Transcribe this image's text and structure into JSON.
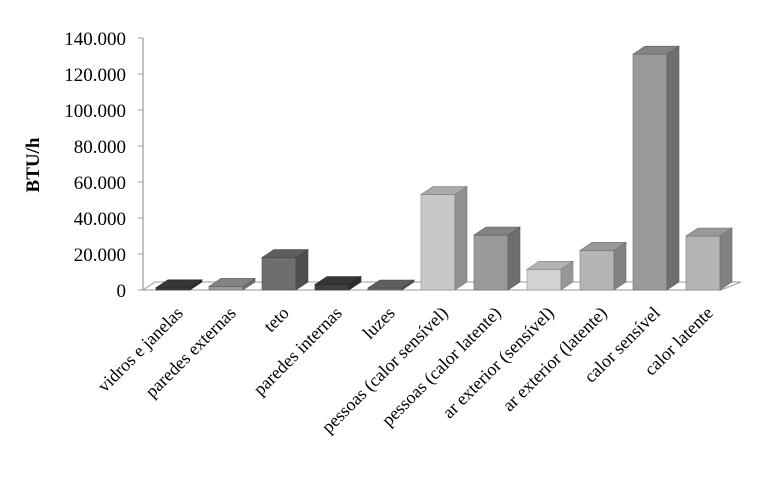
{
  "chart_data": {
    "type": "bar",
    "title": "",
    "xlabel": "",
    "ylabel": "BTU/h",
    "ylim": [
      0,
      140000
    ],
    "yticks": [
      {
        "value": 0,
        "label": "0"
      },
      {
        "value": 20000,
        "label": "20.000"
      },
      {
        "value": 40000,
        "label": "40.000"
      },
      {
        "value": 60000,
        "label": "60.000"
      },
      {
        "value": 80000,
        "label": "80.000"
      },
      {
        "value": 100000,
        "label": "100.000"
      },
      {
        "value": 120000,
        "label": "120.000"
      },
      {
        "value": 140000,
        "label": "140.000"
      }
    ],
    "categories": [
      "vidros e janelas",
      "paredes externas",
      "teto",
      "paredes internas",
      "luzes",
      "pessoas (calor sensível)",
      "pessoas (calor latente)",
      "ar exterior (sensível)",
      "ar exterior (latente)",
      "calor sensível",
      "calor latente"
    ],
    "values": [
      1200,
      2000,
      18000,
      3000,
      400,
      53000,
      30500,
      11500,
      22000,
      131000,
      30000
    ],
    "colors": [
      "#404040",
      "#9a9a9a",
      "#6e6e6e",
      "#404040",
      "#6e6e6e",
      "#c8c8c8",
      "#9a9a9a",
      "#d2d2d2",
      "#b4b4b4",
      "#9a9a9a",
      "#b4b4b4"
    ],
    "grid": false,
    "legend": "none",
    "style": "3d-column"
  }
}
